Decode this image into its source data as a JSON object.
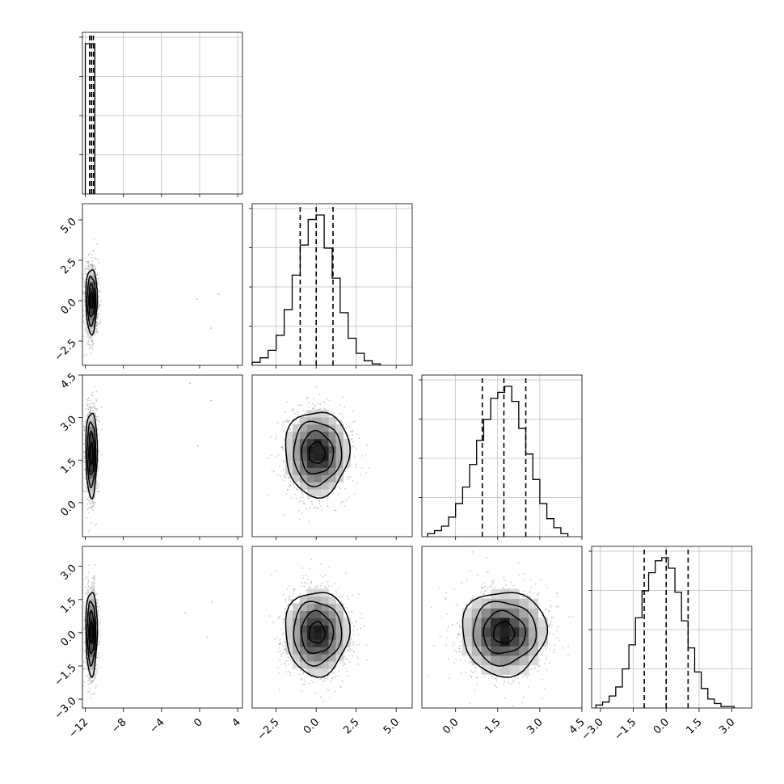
{
  "chart_data": {
    "type": "corner",
    "grid": true,
    "parameters": [
      {
        "index": 0,
        "range": [
          -12.3,
          4.5
        ],
        "ticks": [
          -12,
          -8,
          -4,
          0,
          4
        ],
        "tick_labels": [
          "−12",
          "−8",
          "−4",
          "0",
          "4"
        ]
      },
      {
        "index": 1,
        "range": [
          -4.0,
          6.0
        ],
        "ticks": [
          -2.5,
          0,
          2.5,
          5
        ],
        "tick_labels": [
          "−2.5",
          "0.0",
          "2.5",
          "5.0"
        ]
      },
      {
        "index": 2,
        "range": [
          -1.2,
          4.5
        ],
        "ticks": [
          0,
          1.5,
          3,
          4.5
        ],
        "tick_labels": [
          "0.0",
          "1.5",
          "3.0",
          "4.5"
        ]
      },
      {
        "index": 3,
        "range": [
          -3.4,
          3.9
        ],
        "ticks": [
          -3,
          -1.5,
          0,
          1.5,
          3
        ],
        "tick_labels": [
          "−3.0",
          "−1.5",
          "0.0",
          "1.5",
          "3.0"
        ]
      }
    ],
    "marginals": [
      {
        "param": 0,
        "bins": [
          -12.0,
          -11.0
        ],
        "counts": [
          1.0
        ],
        "quantiles": [
          -11.55,
          -11.35,
          -11.15
        ]
      },
      {
        "param": 1,
        "bins": [
          -4.0,
          -3.5,
          -3.0,
          -2.5,
          -2.0,
          -1.5,
          -1.0,
          -0.5,
          0.0,
          0.5,
          1.0,
          1.5,
          2.0,
          2.5,
          3.0,
          3.5,
          4.0
        ],
        "counts": [
          0.02,
          0.05,
          0.1,
          0.2,
          0.37,
          0.6,
          0.8,
          0.97,
          1.0,
          0.78,
          0.58,
          0.35,
          0.18,
          0.08,
          0.03,
          0.01
        ],
        "quantiles": [
          -1.0,
          0.0,
          1.05
        ]
      },
      {
        "param": 2,
        "bins": [
          -1.0,
          -0.75,
          -0.5,
          -0.25,
          0.0,
          0.25,
          0.5,
          0.75,
          1.0,
          1.25,
          1.5,
          1.75,
          2.0,
          2.25,
          2.5,
          2.75,
          3.0,
          3.25,
          3.5,
          3.75,
          4.0
        ],
        "counts": [
          0.02,
          0.04,
          0.07,
          0.13,
          0.22,
          0.33,
          0.48,
          0.64,
          0.78,
          0.92,
          0.96,
          1.0,
          0.9,
          0.72,
          0.55,
          0.38,
          0.22,
          0.12,
          0.06,
          0.02
        ],
        "quantiles": [
          0.95,
          1.72,
          2.5
        ]
      },
      {
        "param": 3,
        "bins": [
          -3.2,
          -2.9,
          -2.6,
          -2.3,
          -2.0,
          -1.7,
          -1.4,
          -1.1,
          -0.8,
          -0.5,
          -0.2,
          0.1,
          0.4,
          0.7,
          1.0,
          1.3,
          1.6,
          1.9,
          2.2,
          2.5,
          2.8,
          3.1
        ],
        "counts": [
          0.02,
          0.04,
          0.08,
          0.14,
          0.26,
          0.42,
          0.6,
          0.78,
          0.9,
          0.98,
          1.0,
          0.93,
          0.77,
          0.58,
          0.4,
          0.24,
          0.13,
          0.06,
          0.03,
          0.01,
          0.01
        ],
        "quantiles": [
          -1.0,
          0.0,
          1.0
        ]
      }
    ],
    "joints": [
      {
        "x_param": 0,
        "y_param": 1,
        "center": [
          -11.35,
          0.0
        ],
        "sigma": [
          0.3,
          1.0
        ],
        "outliers": [
          [
            -0.3,
            0.1
          ],
          [
            1.2,
            -1.7
          ],
          [
            2.0,
            0.4
          ]
        ]
      },
      {
        "x_param": 0,
        "y_param": 2,
        "center": [
          -11.35,
          1.72
        ],
        "sigma": [
          0.3,
          0.75
        ],
        "outliers": [
          [
            -1.0,
            4.2
          ],
          [
            -0.2,
            2.0
          ],
          [
            1.2,
            3.6
          ]
        ]
      },
      {
        "x_param": 0,
        "y_param": 3,
        "center": [
          -11.35,
          0.0
        ],
        "sigma": [
          0.3,
          0.95
        ],
        "outliers": [
          [
            -1.5,
            0.9
          ],
          [
            1.3,
            1.4
          ],
          [
            0.8,
            -0.2
          ]
        ]
      },
      {
        "x_param": 1,
        "y_param": 2,
        "center": [
          0.05,
          1.75
        ],
        "sigma": [
          1.0,
          0.75
        ],
        "outliers": []
      },
      {
        "x_param": 1,
        "y_param": 3,
        "center": [
          0.05,
          0.0
        ],
        "sigma": [
          1.0,
          0.95
        ],
        "outliers": []
      },
      {
        "x_param": 2,
        "y_param": 3,
        "center": [
          1.72,
          0.0
        ],
        "sigma": [
          0.75,
          0.95
        ],
        "outliers": []
      }
    ],
    "contour_levels_sigma": [
      0.5,
      1.0,
      1.5,
      2.0
    ]
  }
}
